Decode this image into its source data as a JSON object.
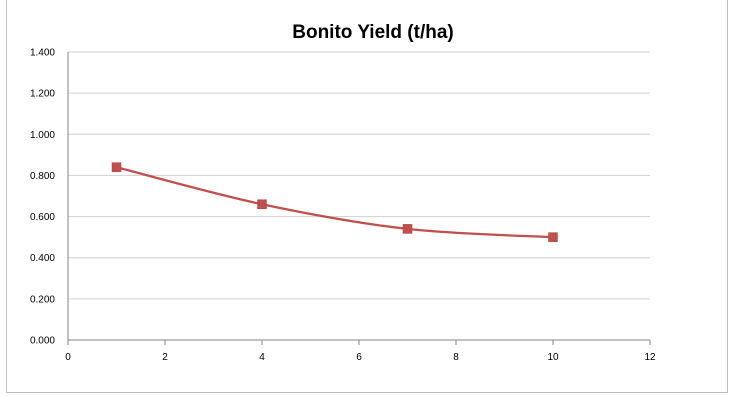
{
  "chart_data": {
    "type": "scatter",
    "title": "Bonito Yield (t/ha)",
    "xlabel": "",
    "ylabel": "",
    "xlim": [
      0,
      12
    ],
    "ylim": [
      0,
      1.4
    ],
    "x_ticks": [
      "0",
      "2",
      "4",
      "6",
      "8",
      "10",
      "12"
    ],
    "y_ticks": [
      "0.000",
      "0.200",
      "0.400",
      "0.600",
      "0.800",
      "1.000",
      "1.200",
      "1.400"
    ],
    "grid": "horizontal",
    "legend": "none",
    "line_style": "smoothed",
    "marker": "square",
    "series": [
      {
        "color": "#c0504d",
        "points": [
          {
            "x": 1,
            "y": 0.84
          },
          {
            "x": 4,
            "y": 0.66
          },
          {
            "x": 7,
            "y": 0.54
          },
          {
            "x": 10,
            "y": 0.5
          }
        ]
      }
    ]
  }
}
